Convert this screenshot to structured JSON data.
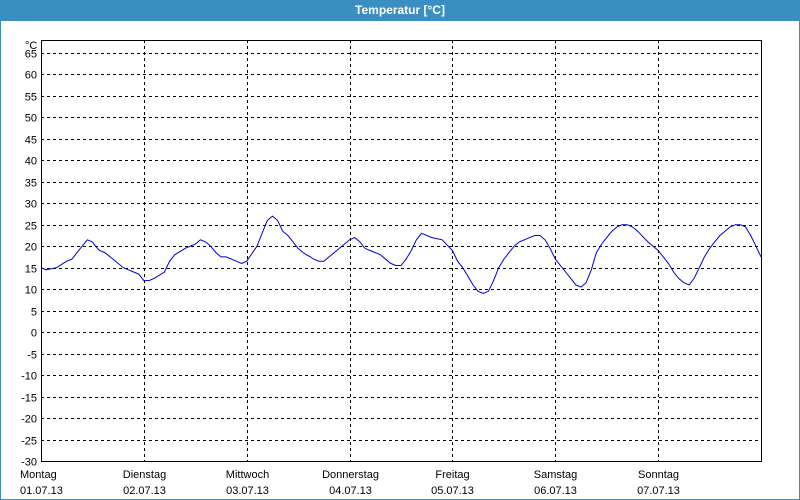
{
  "window": {
    "title": "Temperatur [°C]"
  },
  "chart_data": {
    "type": "line",
    "title": "Temperatur [°C]",
    "unit_label": "°C",
    "ylim": [
      -30,
      68
    ],
    "y_ticks": [
      65,
      60,
      55,
      50,
      45,
      40,
      35,
      30,
      25,
      20,
      15,
      10,
      5,
      0,
      -5,
      -10,
      -15,
      -20,
      -25,
      -30
    ],
    "xlim": [
      0,
      7
    ],
    "day_labels": [
      {
        "day": "Montag",
        "date": "01.07.13"
      },
      {
        "day": "Dienstag",
        "date": "02.07.13"
      },
      {
        "day": "Mittwoch",
        "date": "03.07.13"
      },
      {
        "day": "Donnerstag",
        "date": "04.07.13"
      },
      {
        "day": "Freitag",
        "date": "05.07.13"
      },
      {
        "day": "Samstag",
        "date": "06.07.13"
      },
      {
        "day": "Sonntag",
        "date": "07.07.13"
      }
    ],
    "grid": true,
    "series": [
      {
        "color": "#0000cc",
        "x": [
          0.0,
          0.05,
          0.15,
          0.25,
          0.3,
          0.4,
          0.45,
          0.5,
          0.53,
          0.57,
          0.62,
          0.7,
          0.8,
          0.9,
          0.95,
          1.0,
          1.05,
          1.1,
          1.2,
          1.25,
          1.3,
          1.4,
          1.45,
          1.5,
          1.55,
          1.6,
          1.65,
          1.7,
          1.75,
          1.8,
          1.85,
          1.9,
          1.95,
          2.0,
          2.1,
          2.15,
          2.2,
          2.25,
          2.3,
          2.35,
          2.4,
          2.45,
          2.5,
          2.55,
          2.58,
          2.62,
          2.65,
          2.7,
          2.75,
          2.8,
          2.9,
          3.0,
          3.05,
          3.1,
          3.15,
          3.2,
          3.25,
          3.3,
          3.4,
          3.45,
          3.5,
          3.55,
          3.6,
          3.65,
          3.7,
          3.8,
          3.9,
          4.0,
          4.05,
          4.1,
          4.15,
          4.2,
          4.25,
          4.3,
          4.35,
          4.4,
          4.45,
          4.5,
          4.55,
          4.6,
          4.65,
          4.7,
          4.75,
          4.8,
          4.85,
          4.9,
          4.95,
          5.0,
          5.1,
          5.15,
          5.2,
          5.25,
          5.3,
          5.35,
          5.4,
          5.45,
          5.5,
          5.55,
          5.6,
          5.65,
          5.7,
          5.75,
          5.8,
          5.9,
          6.0,
          6.05,
          6.1,
          6.15,
          6.2,
          6.25,
          6.3,
          6.35,
          6.4,
          6.45,
          6.5,
          6.55,
          6.6,
          6.65,
          6.7,
          6.75,
          6.8,
          6.85,
          6.9,
          6.95,
          7.0
        ],
        "values": [
          15.0,
          14.5,
          15.0,
          16.5,
          17.0,
          20.0,
          21.5,
          21.0,
          20.0,
          19.0,
          18.5,
          17.0,
          15.0,
          14.0,
          13.5,
          12.0,
          12.0,
          12.5,
          14.0,
          16.5,
          18.0,
          19.5,
          20.0,
          20.5,
          21.5,
          21.0,
          20.0,
          18.5,
          17.5,
          17.5,
          17.0,
          16.5,
          16.0,
          16.5,
          20.0,
          23.0,
          26.0,
          27.0,
          26.0,
          23.5,
          22.5,
          21.0,
          19.5,
          18.5,
          18.0,
          17.5,
          17.0,
          16.5,
          16.5,
          17.5,
          19.5,
          21.5,
          22.0,
          21.0,
          19.5,
          19.0,
          18.5,
          18.0,
          16.0,
          15.5,
          15.5,
          17.0,
          19.0,
          21.5,
          23.0,
          22.0,
          21.5,
          19.0,
          16.5,
          15.0,
          13.0,
          11.0,
          9.5,
          9.0,
          9.5,
          12.0,
          15.0,
          17.0,
          18.5,
          20.0,
          21.0,
          21.5,
          22.0,
          22.5,
          22.5,
          21.5,
          19.5,
          17.0,
          14.0,
          12.5,
          11.0,
          10.5,
          11.5,
          14.5,
          18.5,
          20.5,
          22.0,
          23.5,
          24.5,
          25.0,
          25.0,
          24.5,
          23.5,
          21.0,
          19.0,
          17.5,
          16.0,
          14.0,
          12.5,
          11.5,
          11.0,
          12.5,
          15.0,
          17.5,
          19.5,
          21.0,
          22.5,
          23.5,
          24.5,
          25.0,
          25.0,
          24.5,
          22.5,
          20.0,
          17.5
        ]
      }
    ]
  }
}
